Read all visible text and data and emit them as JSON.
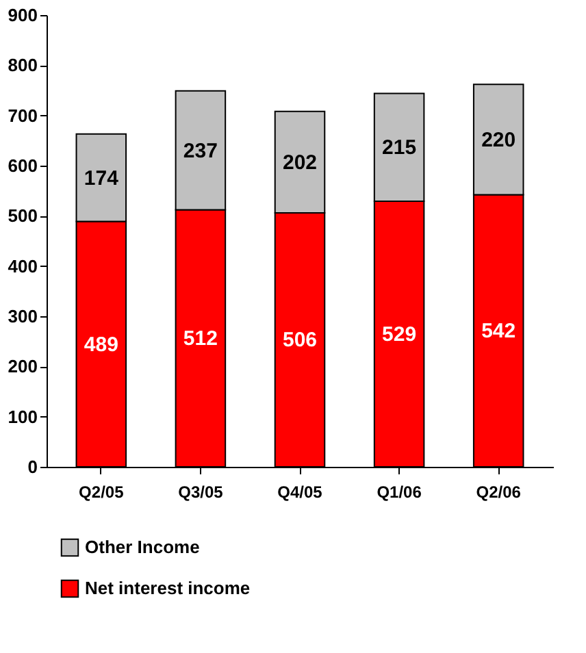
{
  "chart_data": {
    "type": "bar",
    "stacked": true,
    "categories": [
      "Q2/05",
      "Q3/05",
      "Q4/05",
      "Q1/06",
      "Q2/06"
    ],
    "series": [
      {
        "name": "Net interest income",
        "color": "#ff0000",
        "values": [
          489,
          512,
          506,
          529,
          542
        ]
      },
      {
        "name": "Other Income",
        "color": "#c0c0c0",
        "values": [
          174,
          237,
          202,
          215,
          220
        ]
      }
    ],
    "ylim": [
      0,
      900
    ],
    "yticks": [
      0,
      100,
      200,
      300,
      400,
      500,
      600,
      700,
      800,
      900
    ],
    "grid": false,
    "legend": "bottom",
    "data_labels": true
  }
}
